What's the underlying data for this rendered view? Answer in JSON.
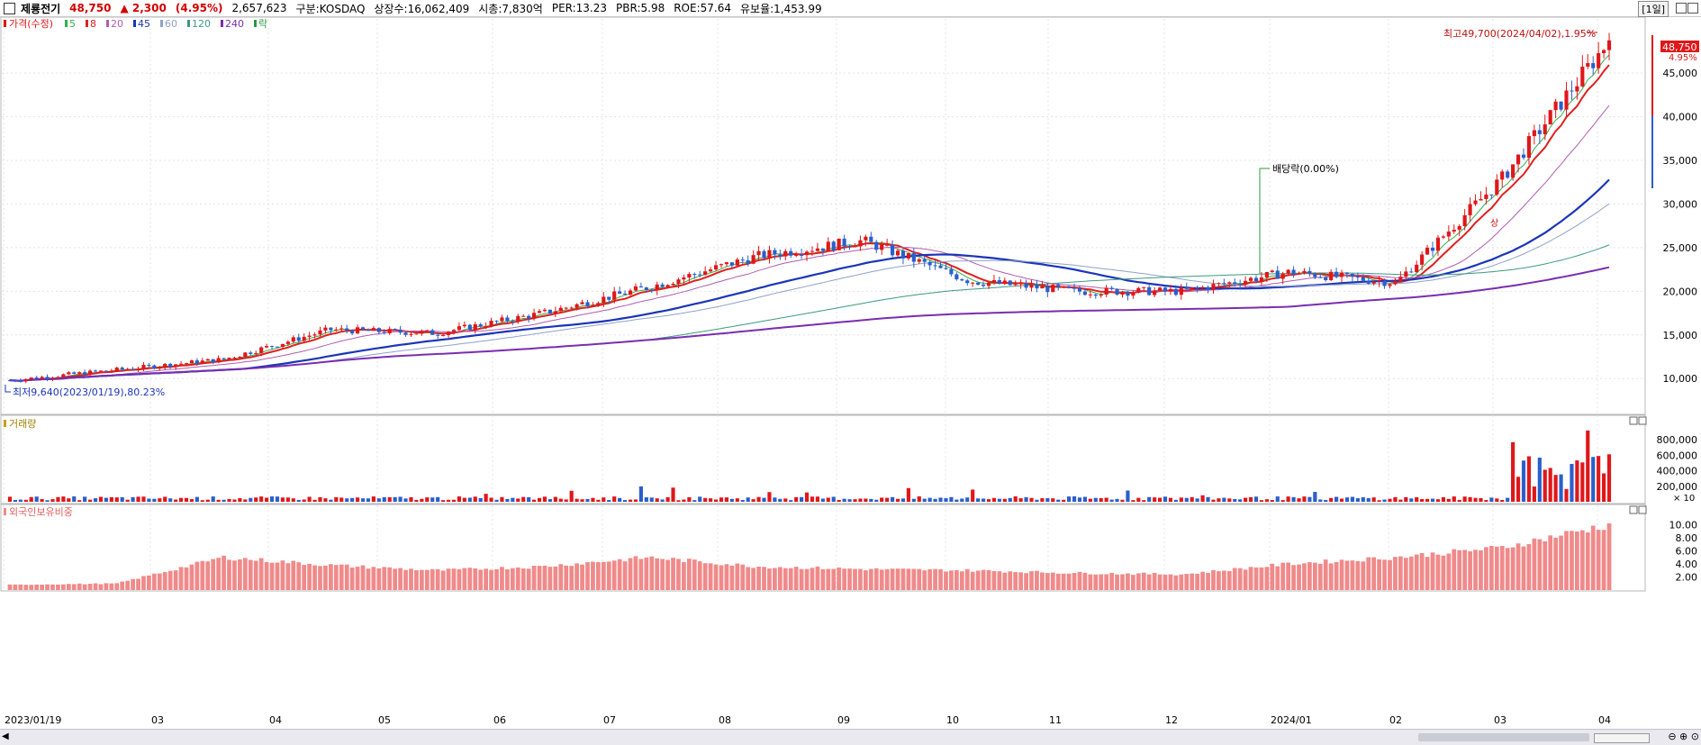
{
  "header": {
    "name": "제룡전기",
    "price": "48,750",
    "change": "▲ 2,300",
    "change_pct": "(4.95%)",
    "volume": "2,657,623",
    "market": "구분:KOSDAQ",
    "shares": "상장수:16,062,409",
    "mktcap": "시총:7,830억",
    "per": "PER:13.23",
    "pbr": "PBR:5.98",
    "roe": "ROE:57.64",
    "reserve": "유보율:1,453.99",
    "period": "[1일]"
  },
  "legend": {
    "price": "가격(수정)",
    "ma": [
      "5",
      "8",
      "20",
      "45",
      "60",
      "120",
      "240"
    ],
    "ex": "락"
  },
  "annotations": {
    "high": "최고49,700(2024/04/02),1.95%",
    "low": "최저9,640(2023/01/19),80.23%",
    "dividend": "배당락(0.00%)",
    "last_price": "48,750",
    "last_pct": "4.95%",
    "up_limit": "상"
  },
  "colors": {
    "up": "#e0171a",
    "down": "#2a5fcc",
    "ma5": "#34b04a",
    "ma8": "#e02020",
    "ma20": "#b05db0",
    "ma45": "#1a35b8",
    "ma60": "#8fa2c8",
    "ma120": "#3c9a80",
    "ma240": "#7a2db0",
    "foreign": "#f08a8a"
  },
  "volume_panel": {
    "title": "거래량",
    "unit": "× 10"
  },
  "foreign_panel": {
    "title": "외국인보유비중"
  },
  "chart_data": [
    {
      "type": "candlestick",
      "title": "가격(수정)",
      "x_ticks": [
        "2023/01/19",
        "03",
        "04",
        "05",
        "06",
        "07",
        "08",
        "09",
        "10",
        "11",
        "12",
        "2024/01",
        "02",
        "03",
        "04"
      ],
      "y_ticks": [
        10000,
        15000,
        20000,
        25000,
        30000,
        35000,
        40000,
        45000
      ],
      "ylim": [
        6000,
        51000
      ],
      "x": [
        "2023-01",
        "2023-02",
        "2023-03",
        "2023-04",
        "2023-05",
        "2023-06",
        "2023-07",
        "2023-08",
        "2023-09",
        "2023-10",
        "2023-11",
        "2023-12",
        "2024-01",
        "2024-02",
        "2024-03",
        "2024-04"
      ],
      "close_approx": [
        9800,
        11000,
        12200,
        15600,
        15200,
        17500,
        20500,
        24000,
        25800,
        21200,
        20000,
        20000,
        22200,
        21000,
        33000,
        48750
      ],
      "high": 49700,
      "low": 9640
    },
    {
      "type": "bar",
      "title": "거래량",
      "y_ticks": [
        200000,
        400000,
        600000,
        800000
      ],
      "ylim": [
        0,
        1000000
      ]
    },
    {
      "type": "bar",
      "title": "외국인보유비중",
      "y_ticks": [
        2.0,
        4.0,
        6.0,
        8.0,
        10.0
      ],
      "ylim": [
        0,
        11
      ],
      "x": [
        "2023-01",
        "2023-02",
        "2023-03",
        "2023-04",
        "2023-05",
        "2023-06",
        "2023-07",
        "2023-08",
        "2023-09",
        "2023-10",
        "2023-11",
        "2023-12",
        "2024-01",
        "2024-02",
        "2024-03",
        "2024-04"
      ],
      "values": [
        0.8,
        1.0,
        5.0,
        3.8,
        3.0,
        3.6,
        5.0,
        3.6,
        3.2,
        3.0,
        2.6,
        2.4,
        4.0,
        5.0,
        6.5,
        10.0
      ]
    }
  ]
}
